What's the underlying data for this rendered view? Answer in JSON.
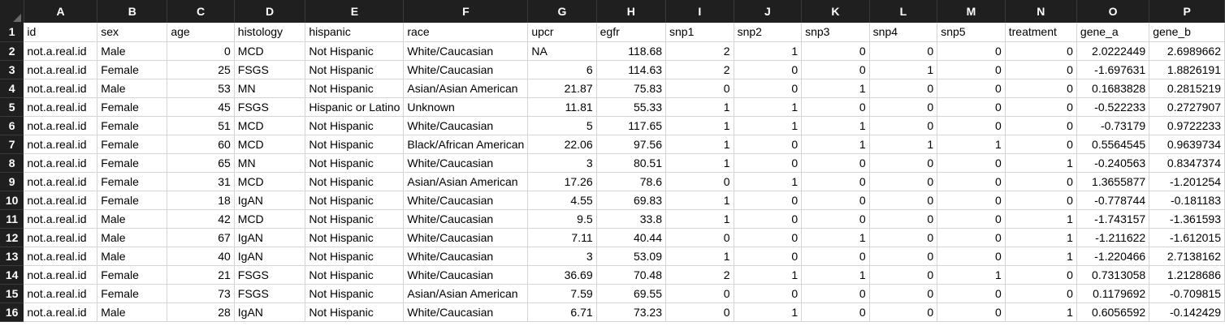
{
  "columns": [
    "A",
    "B",
    "C",
    "D",
    "E",
    "F",
    "G",
    "H",
    "I",
    "J",
    "K",
    "L",
    "M",
    "N",
    "O",
    "P"
  ],
  "rows": [
    {
      "n": "1",
      "cells": [
        "id",
        "sex",
        "age",
        "histology",
        "hispanic",
        "race",
        "upcr",
        "egfr",
        "snp1",
        "snp2",
        "snp3",
        "snp4",
        "snp5",
        "treatment",
        "gene_a",
        "gene_b"
      ]
    },
    {
      "n": "2",
      "cells": [
        "not.a.real.id",
        "Male",
        "0",
        "MCD",
        "Not Hispanic",
        "White/Caucasian",
        "NA",
        "118.68",
        "2",
        "1",
        "0",
        "0",
        "0",
        "0",
        "2.0222449",
        "2.6989662"
      ]
    },
    {
      "n": "3",
      "cells": [
        "not.a.real.id",
        "Female",
        "25",
        "FSGS",
        "Not Hispanic",
        "White/Caucasian",
        "6",
        "114.63",
        "2",
        "0",
        "0",
        "1",
        "0",
        "0",
        "-1.697631",
        "1.8826191"
      ]
    },
    {
      "n": "4",
      "cells": [
        "not.a.real.id",
        "Male",
        "53",
        "MN",
        "Not Hispanic",
        "Asian/Asian American",
        "21.87",
        "75.83",
        "0",
        "0",
        "1",
        "0",
        "0",
        "0",
        "0.1683828",
        "0.2815219"
      ]
    },
    {
      "n": "5",
      "cells": [
        "not.a.real.id",
        "Female",
        "45",
        "FSGS",
        "Hispanic or Latino",
        "Unknown",
        "11.81",
        "55.33",
        "1",
        "1",
        "0",
        "0",
        "0",
        "0",
        "-0.522233",
        "0.2727907"
      ]
    },
    {
      "n": "6",
      "cells": [
        "not.a.real.id",
        "Female",
        "51",
        "MCD",
        "Not Hispanic",
        "White/Caucasian",
        "5",
        "117.65",
        "1",
        "1",
        "1",
        "0",
        "0",
        "0",
        "-0.73179",
        "0.9722233"
      ]
    },
    {
      "n": "7",
      "cells": [
        "not.a.real.id",
        "Female",
        "60",
        "MCD",
        "Not Hispanic",
        "Black/African American",
        "22.06",
        "97.56",
        "1",
        "0",
        "1",
        "1",
        "1",
        "0",
        "0.5564545",
        "0.9639734"
      ]
    },
    {
      "n": "8",
      "cells": [
        "not.a.real.id",
        "Female",
        "65",
        "MN",
        "Not Hispanic",
        "White/Caucasian",
        "3",
        "80.51",
        "1",
        "0",
        "0",
        "0",
        "0",
        "1",
        "-0.240563",
        "0.8347374"
      ]
    },
    {
      "n": "9",
      "cells": [
        "not.a.real.id",
        "Female",
        "31",
        "MCD",
        "Not Hispanic",
        "Asian/Asian American",
        "17.26",
        "78.6",
        "0",
        "1",
        "0",
        "0",
        "0",
        "0",
        "1.3655877",
        "-1.201254"
      ]
    },
    {
      "n": "10",
      "cells": [
        "not.a.real.id",
        "Female",
        "18",
        "IgAN",
        "Not Hispanic",
        "White/Caucasian",
        "4.55",
        "69.83",
        "1",
        "0",
        "0",
        "0",
        "0",
        "0",
        "-0.778744",
        "-0.181183"
      ]
    },
    {
      "n": "11",
      "cells": [
        "not.a.real.id",
        "Male",
        "42",
        "MCD",
        "Not Hispanic",
        "White/Caucasian",
        "9.5",
        "33.8",
        "1",
        "0",
        "0",
        "0",
        "0",
        "1",
        "-1.743157",
        "-1.361593"
      ]
    },
    {
      "n": "12",
      "cells": [
        "not.a.real.id",
        "Male",
        "67",
        "IgAN",
        "Not Hispanic",
        "White/Caucasian",
        "7.11",
        "40.44",
        "0",
        "0",
        "1",
        "0",
        "0",
        "1",
        "-1.211622",
        "-1.612015"
      ]
    },
    {
      "n": "13",
      "cells": [
        "not.a.real.id",
        "Male",
        "40",
        "IgAN",
        "Not Hispanic",
        "White/Caucasian",
        "3",
        "53.09",
        "1",
        "0",
        "0",
        "0",
        "0",
        "1",
        "-1.220466",
        "2.7138162"
      ]
    },
    {
      "n": "14",
      "cells": [
        "not.a.real.id",
        "Female",
        "21",
        "FSGS",
        "Not Hispanic",
        "White/Caucasian",
        "36.69",
        "70.48",
        "2",
        "1",
        "1",
        "0",
        "1",
        "0",
        "0.7313058",
        "1.2128686"
      ]
    },
    {
      "n": "15",
      "cells": [
        "not.a.real.id",
        "Female",
        "73",
        "FSGS",
        "Not Hispanic",
        "Asian/Asian American",
        "7.59",
        "69.55",
        "0",
        "0",
        "0",
        "0",
        "0",
        "0",
        "0.1179692",
        "-0.709815"
      ]
    },
    {
      "n": "16",
      "cells": [
        "not.a.real.id",
        "Male",
        "28",
        "IgAN",
        "Not Hispanic",
        "White/Caucasian",
        "6.71",
        "73.23",
        "0",
        "1",
        "0",
        "0",
        "0",
        "1",
        "0.6056592",
        "-0.142429"
      ]
    }
  ]
}
